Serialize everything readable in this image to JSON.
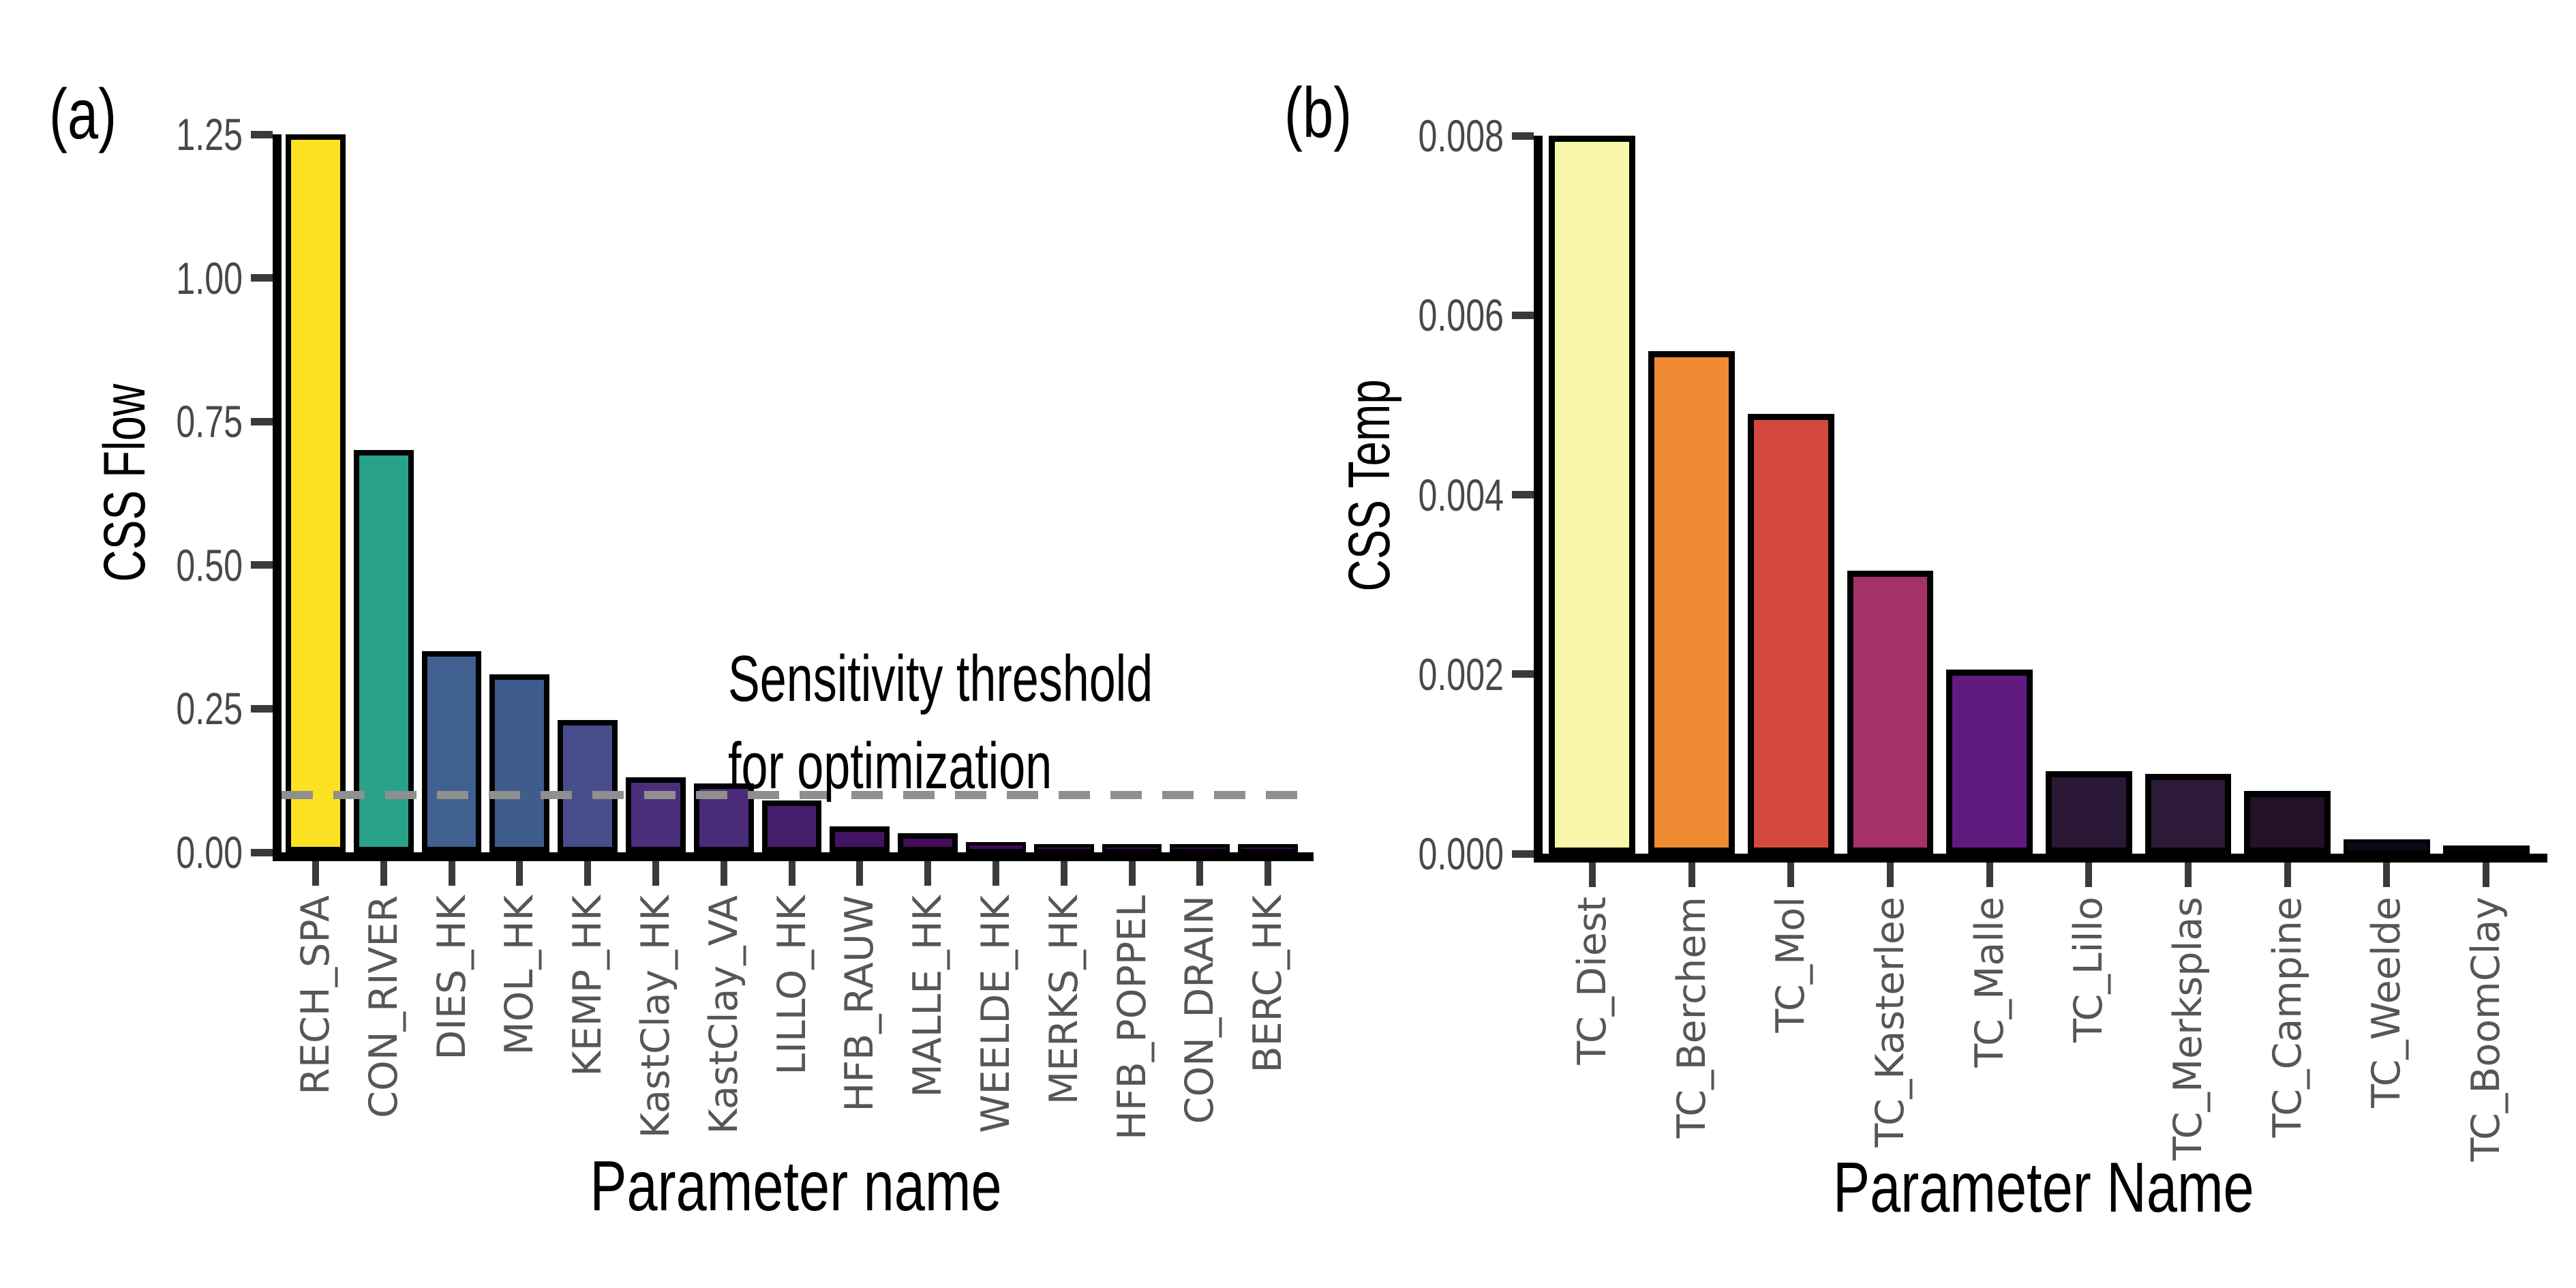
{
  "figure": {
    "background": "#ffffff"
  },
  "panels": [
    {
      "letter": "(a)",
      "ylabel": "CSS Flow",
      "xlabel": "Parameter name"
    },
    {
      "letter": "(b)",
      "ylabel": "CSS Temp",
      "xlabel": "Parameter Name"
    }
  ],
  "annotation": {
    "line1": "Sensitivity threshold",
    "line2": "for optimization"
  },
  "chart_data": [
    {
      "type": "bar",
      "panel_label": "(a)",
      "xlabel": "Parameter name",
      "ylabel": "CSS Flow",
      "ylim": [
        0,
        1.25
      ],
      "ytick_values": [
        0,
        0.25,
        0.5,
        0.75,
        1.0,
        1.25
      ],
      "ytick_labels": [
        "0.00",
        "0.25",
        "0.50",
        "0.75",
        "1.00",
        "1.25"
      ],
      "grid": false,
      "categories": [
        "RECH_SPA",
        "CON_RIVER",
        "DIES_HK",
        "MOL_HK",
        "KEMP_HK",
        "KastClay_HK",
        "KastClay_VA",
        "LILLO_HK",
        "HFB_RAUW",
        "MALLE_HK",
        "WEELDE_HK",
        "MERKS_HK",
        "HFB_POPPEL",
        "CON_DRAIN",
        "BERC_HK"
      ],
      "values": [
        1.25,
        0.7,
        0.35,
        0.31,
        0.23,
        0.13,
        0.12,
        0.09,
        0.045,
        0.033,
        0.018,
        0.014,
        0.012,
        0.011,
        0.011
      ],
      "bar_colors": [
        "#FBE122",
        "#2AA189",
        "#40618F",
        "#3E5C8C",
        "#484D8B",
        "#4B2E7D",
        "#492B79",
        "#451F6C",
        "#431364",
        "#440C5B",
        "#430A57",
        "#420956",
        "#420855",
        "#410754",
        "#410753"
      ],
      "threshold": {
        "value": 0.1,
        "style": "dashed",
        "color": "#8F8F8F",
        "label": "Sensitivity threshold for optimization"
      }
    },
    {
      "type": "bar",
      "panel_label": "(b)",
      "xlabel": "Parameter Name",
      "ylabel": "CSS Temp",
      "ylim": [
        0,
        0.008
      ],
      "ytick_values": [
        0,
        0.002,
        0.004,
        0.006,
        0.008
      ],
      "ytick_labels": [
        "0.000",
        "0.002",
        "0.004",
        "0.006",
        "0.008"
      ],
      "grid": false,
      "categories": [
        "TC_Diest",
        "TC_Berchem",
        "TC_Mol",
        "TC_Kasterlee",
        "TC_Malle",
        "TC_Lillo",
        "TC_Merksplas",
        "TC_Campine",
        "TC_Weelde",
        "TC_BoomClay"
      ],
      "values": [
        0.008,
        0.0056,
        0.0049,
        0.00315,
        0.00205,
        0.00092,
        0.00089,
        0.0007,
        0.00016,
        4e-05
      ],
      "bar_colors": [
        "#F8F7A9",
        "#EE8B33",
        "#D5483D",
        "#A43269",
        "#611A80",
        "#2B1837",
        "#2C1A38",
        "#221129",
        "#0D0819",
        "#070412"
      ]
    }
  ]
}
